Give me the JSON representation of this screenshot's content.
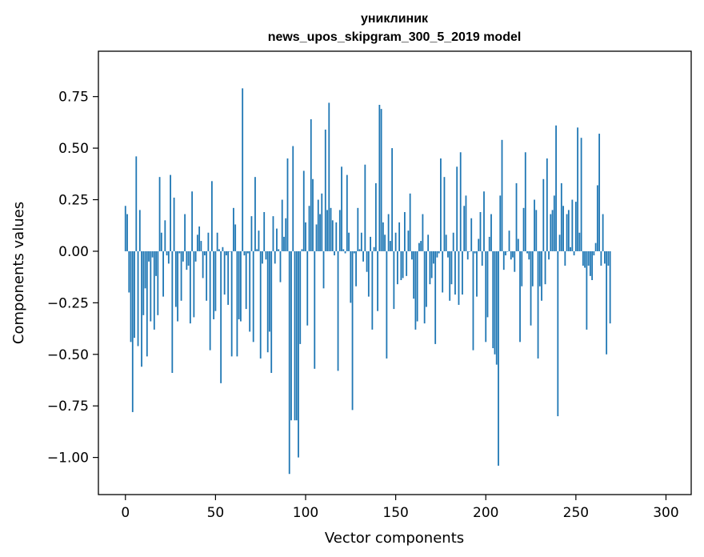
{
  "chart_data": {
    "type": "bar",
    "title_lines": [
      "униклиник",
      "news_upos_skipgram_300_5_2019 model"
    ],
    "xlabel": "Vector components",
    "ylabel": "Components values",
    "xlim": [
      -15,
      314
    ],
    "ylim": [
      -1.18,
      0.97
    ],
    "xticks": [
      0,
      50,
      100,
      150,
      200,
      250,
      300
    ],
    "xtick_labels": [
      "0",
      "50",
      "100",
      "150",
      "200",
      "250",
      "300"
    ],
    "yticks": [
      -1.0,
      -0.75,
      -0.5,
      -0.25,
      0.0,
      0.25,
      0.5,
      0.75
    ],
    "ytick_labels": [
      "−1.00",
      "−0.75",
      "−0.50",
      "−0.25",
      "0.00",
      "0.25",
      "0.50",
      "0.75"
    ],
    "bar_color": "#1f77b4",
    "grid": false,
    "values": [
      0.22,
      0.18,
      -0.2,
      -0.44,
      -0.78,
      -0.42,
      0.46,
      -0.46,
      0.2,
      -0.56,
      -0.31,
      -0.18,
      -0.51,
      -0.05,
      -0.34,
      -0.03,
      -0.38,
      -0.12,
      -0.31,
      0.36,
      0.09,
      -0.22,
      0.15,
      -0.02,
      -0.06,
      0.37,
      -0.59,
      0.26,
      -0.27,
      -0.34,
      -0.01,
      -0.24,
      -0.05,
      0.18,
      -0.09,
      -0.07,
      -0.35,
      0.29,
      -0.32,
      -0.05,
      0.08,
      0.12,
      0.05,
      -0.13,
      -0.02,
      -0.24,
      0.09,
      -0.48,
      0.34,
      -0.33,
      -0.29,
      0.09,
      0.01,
      -0.64,
      0.02,
      -0.21,
      -0.02,
      -0.26,
      0.0,
      -0.51,
      0.21,
      0.13,
      -0.51,
      -0.33,
      -0.34,
      0.79,
      -0.02,
      -0.28,
      -0.01,
      -0.39,
      0.17,
      -0.44,
      0.36,
      0.01,
      0.1,
      -0.52,
      -0.06,
      0.19,
      -0.04,
      -0.49,
      -0.39,
      -0.59,
      0.17,
      -0.06,
      0.11,
      0.01,
      -0.15,
      0.25,
      0.07,
      0.16,
      0.45,
      -1.08,
      -0.82,
      0.51,
      -0.82,
      -0.82,
      -1.0,
      -0.45,
      0.01,
      0.39,
      0.14,
      -0.36,
      0.22,
      0.64,
      0.35,
      -0.57,
      0.13,
      0.25,
      0.18,
      0.28,
      -0.18,
      0.59,
      0.2,
      0.72,
      0.21,
      0.15,
      -0.02,
      0.14,
      -0.58,
      0.2,
      0.41,
      0.01,
      -0.01,
      0.37,
      0.09,
      -0.25,
      -0.77,
      -0.01,
      -0.17,
      0.21,
      0.01,
      0.09,
      -0.05,
      0.42,
      -0.1,
      -0.22,
      0.07,
      -0.38,
      0.02,
      0.33,
      -0.29,
      0.71,
      0.69,
      0.14,
      0.08,
      -0.52,
      0.18,
      0.05,
      0.5,
      -0.28,
      0.09,
      -0.16,
      0.14,
      -0.14,
      -0.13,
      0.19,
      -0.12,
      0.1,
      0.28,
      -0.04,
      -0.23,
      -0.38,
      -0.34,
      0.04,
      0.05,
      0.18,
      -0.35,
      -0.27,
      0.08,
      -0.16,
      -0.13,
      -0.06,
      -0.45,
      -0.03,
      -0.01,
      0.45,
      -0.2,
      0.36,
      0.08,
      -0.03,
      -0.24,
      -0.16,
      0.09,
      -0.21,
      0.41,
      -0.26,
      0.48,
      -0.21,
      0.22,
      0.27,
      -0.04,
      0.0,
      0.16,
      -0.48,
      -0.01,
      -0.22,
      0.06,
      0.19,
      -0.07,
      0.29,
      -0.44,
      -0.32,
      0.07,
      0.18,
      -0.47,
      -0.5,
      -0.55,
      -1.04,
      0.27,
      0.54,
      -0.09,
      -0.02,
      0.0,
      0.1,
      -0.04,
      -0.03,
      -0.1,
      0.33,
      0.06,
      -0.44,
      -0.17,
      0.21,
      0.48,
      -0.01,
      -0.04,
      -0.36,
      -0.17,
      0.25,
      0.2,
      -0.52,
      -0.17,
      -0.24,
      0.35,
      -0.16,
      0.45,
      -0.04,
      0.18,
      0.2,
      0.27,
      0.61,
      -0.8,
      0.08,
      0.33,
      0.22,
      -0.07,
      0.18,
      0.2,
      0.02,
      0.25,
      -0.02,
      0.24,
      0.6,
      0.09,
      0.55,
      -0.07,
      -0.08,
      -0.38,
      -0.07,
      -0.12,
      -0.14,
      -0.02,
      0.04,
      0.32,
      0.57,
      -0.07,
      0.18,
      -0.06,
      -0.5,
      -0.07,
      -0.35
    ]
  }
}
